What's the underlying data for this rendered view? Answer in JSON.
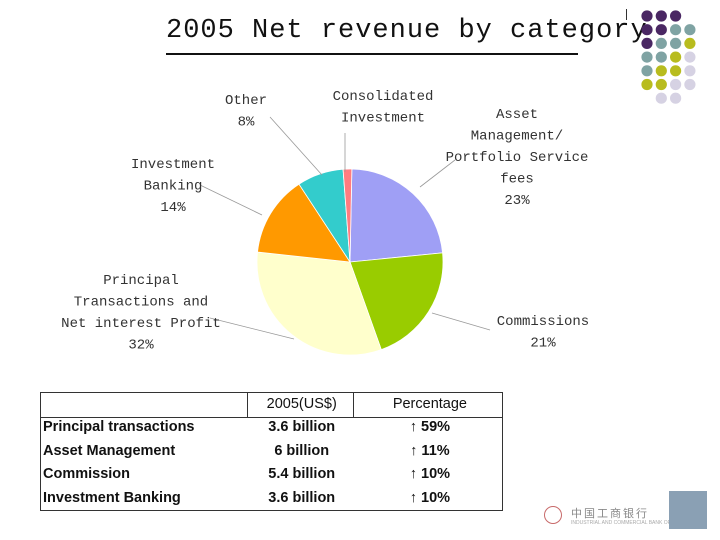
{
  "slide": {
    "title": "2005 Net revenue by category",
    "colors": {
      "dot_purple": "#4a2763",
      "dot_teal": "#7fa3a3",
      "dot_olive": "#b8bc1e",
      "dot_lavender": "#d6d2e3"
    }
  },
  "chart_data": {
    "type": "pie",
    "title": "2005 Net revenue by category",
    "series": [
      {
        "label": "Asset Management/ Portfolio Service fees",
        "pct_text": "23%",
        "value": 23,
        "color": "#9f9ff5"
      },
      {
        "label": "Commissions",
        "pct_text": "21%",
        "value": 21,
        "color": "#99cc00"
      },
      {
        "label": "Principal Transactions and Net interest Profit",
        "pct_text": "32%",
        "value": 32,
        "color": "#ffffcc"
      },
      {
        "label": "Investment Banking",
        "pct_text": "14%",
        "value": 14,
        "color": "#ff9900"
      },
      {
        "label": "Other",
        "pct_text": "8%",
        "value": 8,
        "color": "#33cccc"
      },
      {
        "label": "Consolidated Investment",
        "pct_text": "",
        "value": 1.5,
        "color": "#ff7c80"
      }
    ]
  },
  "table": {
    "headers": [
      "",
      "2005(US$)",
      "Percentage"
    ],
    "rows": [
      [
        "Principal transactions",
        "3.6 billion",
        "↑ 59%"
      ],
      [
        "Asset Management",
        "6 billion",
        "↑ 11%"
      ],
      [
        "Commission",
        "5.4 billion",
        "↑ 10%"
      ],
      [
        "Investment Banking",
        "3.6 billion",
        "↑ 10%"
      ]
    ]
  },
  "logo": {
    "text": "中国工商银行",
    "sub": "INDUSTRIAL AND COMMERCIAL BANK OF CHINA"
  }
}
